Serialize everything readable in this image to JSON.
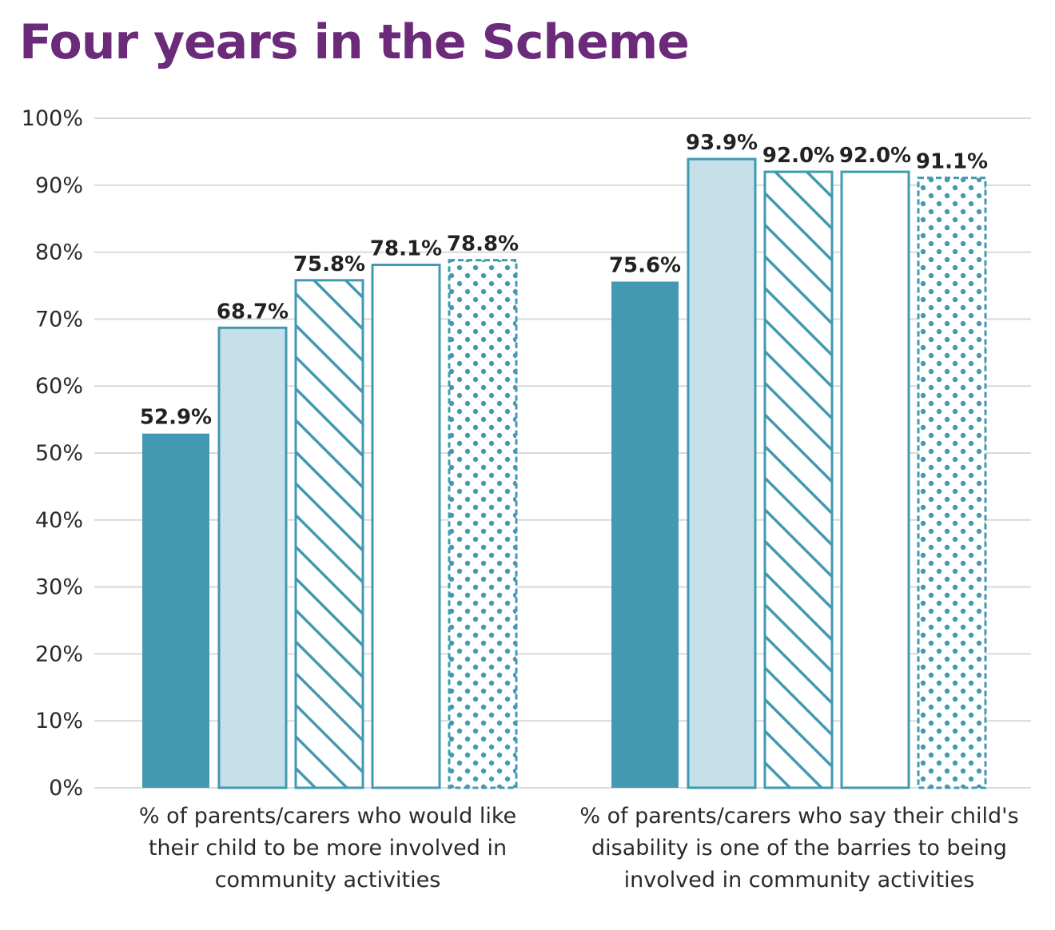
{
  "chart_data": {
    "type": "bar",
    "title": "Four years in the Scheme",
    "xlabel": "",
    "ylabel": "",
    "ylim": [
      0,
      100
    ],
    "yticks": [
      "0%",
      "10%",
      "20%",
      "30%",
      "40%",
      "50%",
      "60%",
      "70%",
      "80%",
      "90%",
      "100%"
    ],
    "grid": true,
    "legend": "none",
    "categories": [
      "% of parents/carers who would like their child to be more involved in community activities",
      "% of parents/carers who say their child's disability is one of the barries to being involved in community activities"
    ],
    "category_lines": [
      [
        "% of parents/carers who would like",
        "their child to be more involved in",
        "community activities"
      ],
      [
        "% of parents/carers who say their child's",
        "disability is one of the barries to being",
        "involved in community activities"
      ]
    ],
    "series": [
      {
        "name": "Series 1",
        "style": "solid",
        "values": [
          52.9,
          75.6
        ],
        "labels": [
          "52.9%",
          "75.6%"
        ]
      },
      {
        "name": "Series 2",
        "style": "light",
        "values": [
          68.7,
          93.9
        ],
        "labels": [
          "68.7%",
          "93.9%"
        ]
      },
      {
        "name": "Series 3",
        "style": "hatch",
        "values": [
          75.8,
          92.0
        ],
        "labels": [
          "75.8%",
          "92.0%"
        ]
      },
      {
        "name": "Series 4",
        "style": "outline",
        "values": [
          78.1,
          92.0
        ],
        "labels": [
          "78.1%",
          "92.0%"
        ]
      },
      {
        "name": "Series 5",
        "style": "dots",
        "values": [
          78.8,
          91.1
        ],
        "labels": [
          "78.8%",
          "91.1%"
        ]
      }
    ],
    "colors": {
      "title": "#6b2a7a",
      "teal": "#4399b1",
      "light": "#c6e0ea",
      "grid": "#d9d9d9"
    }
  }
}
